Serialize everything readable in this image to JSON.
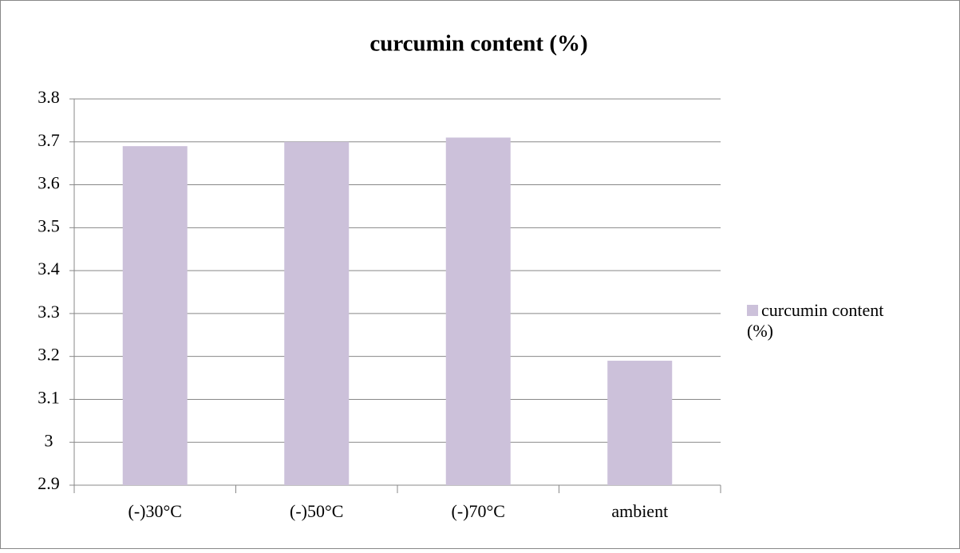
{
  "chart_data": {
    "type": "bar",
    "title": "curcumin content (%)",
    "categories": [
      "(-)30°C",
      "(-)50°C",
      "(-)70°C",
      "ambient"
    ],
    "series": [
      {
        "name": "curcumin content (%)",
        "color": "#ccc1da",
        "values": [
          3.69,
          3.7,
          3.71,
          3.19
        ]
      }
    ],
    "ylim": [
      2.9,
      3.8
    ],
    "yticks": [
      2.9,
      3,
      3.1,
      3.2,
      3.3,
      3.4,
      3.5,
      3.6,
      3.7,
      3.8
    ],
    "grid": true,
    "legend": "right"
  }
}
